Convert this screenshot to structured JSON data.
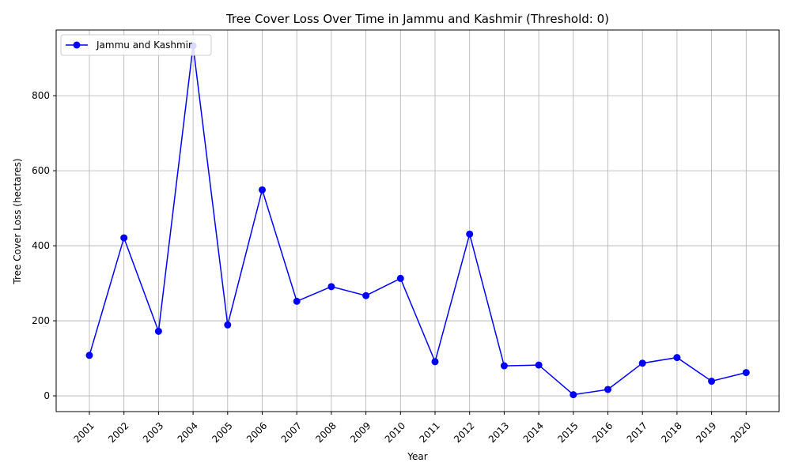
{
  "chart_data": {
    "type": "line",
    "title": "Tree Cover Loss Over Time in Jammu and Kashmir (Threshold: 0)",
    "xlabel": "Year",
    "ylabel": "Tree Cover Loss (hectares)",
    "x": [
      "2001",
      "2002",
      "2003",
      "2004",
      "2005",
      "2006",
      "2007",
      "2008",
      "2009",
      "2010",
      "2011",
      "2012",
      "2013",
      "2014",
      "2015",
      "2016",
      "2017",
      "2018",
      "2019",
      "2020"
    ],
    "series": [
      {
        "name": "Jammu and Kashmir",
        "color": "#0000ff",
        "values": [
          108,
          421,
          172,
          933,
          189,
          549,
          252,
          291,
          267,
          313,
          91,
          431,
          80,
          82,
          3,
          17,
          87,
          102,
          39,
          62
        ]
      }
    ],
    "yticks": [
      0,
      200,
      400,
      600,
      800
    ],
    "ylim": [
      -42,
      975
    ],
    "grid": true,
    "legend": "top-left",
    "marker": "circle"
  }
}
